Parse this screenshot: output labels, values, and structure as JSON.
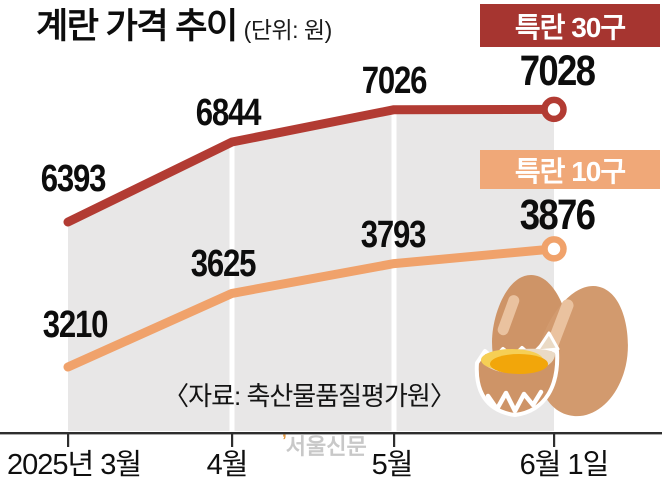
{
  "chart_data": {
    "type": "line",
    "title": "계란 가격 추이",
    "unit_label": "(단위: 원)",
    "categories": [
      "2025년 3월",
      "4월",
      "5월",
      "6월 1일"
    ],
    "series": [
      {
        "name": "특란 30구",
        "values": [
          6393,
          6844,
          7026,
          7028
        ],
        "line_color": "#B23B33",
        "label_bg": "#A63530"
      },
      {
        "name": "특란 10구",
        "values": [
          3210,
          3625,
          3793,
          3876
        ],
        "line_color": "#F0A26B",
        "label_bg": "#F0A878"
      }
    ],
    "area_fill": "#E8E7E7",
    "grid": false,
    "legend_position": "inline-right",
    "endpoint_marker": "open-circle",
    "source": "〈자료: 축산물품질평가원〉"
  },
  "axis": {
    "color": "#2E2E2E"
  },
  "watermark": {
    "mark": "’",
    "text": "서울신문",
    "color": "#C8C8C8",
    "mark_color": "#E2963D"
  },
  "illustration": {
    "name": "cracked-eggs",
    "shell_left": "#CE9467",
    "shell_right": "#D29A6E",
    "highlight": "#EAC29F",
    "shell_inner": "#EADAC5",
    "yolk": "#F2A60A",
    "yolk_highlight": "#F6CF55",
    "rim": "#FFFFFF"
  }
}
